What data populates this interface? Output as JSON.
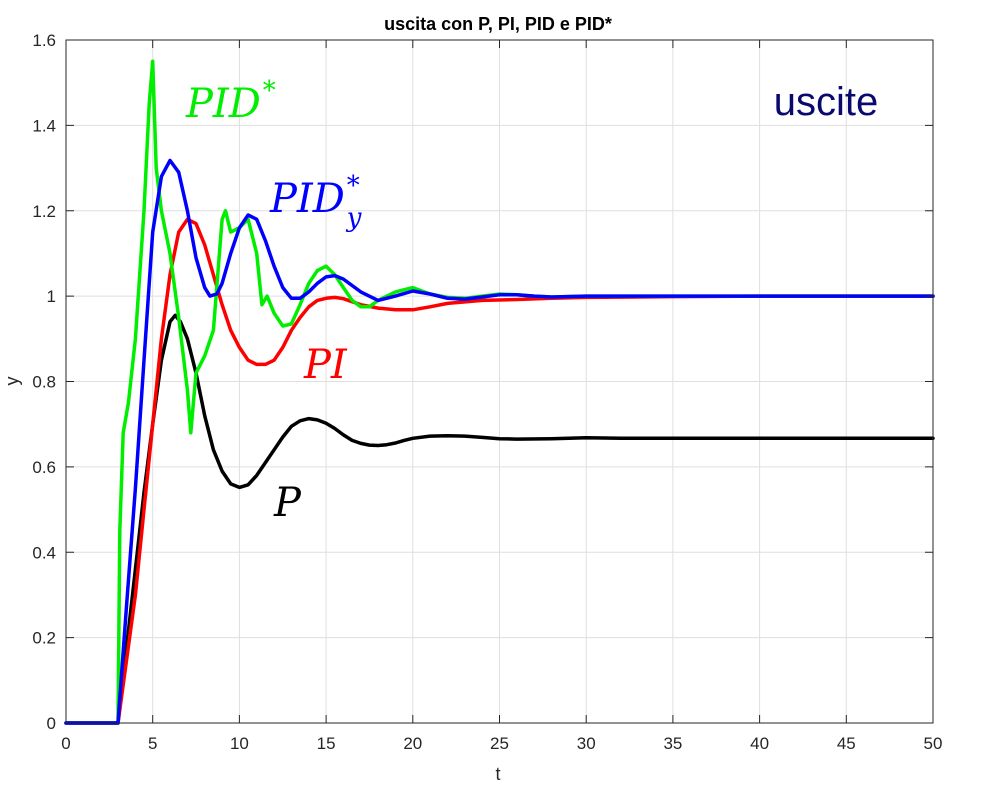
{
  "chart_data": {
    "type": "line",
    "title": "uscita con P, PI, PID e PID*",
    "xlabel": "t",
    "ylabel": "y",
    "xlim": [
      0,
      50
    ],
    "ylim": [
      0,
      1.6
    ],
    "x_ticks": [
      0,
      5,
      10,
      15,
      20,
      25,
      30,
      35,
      40,
      45,
      50
    ],
    "y_ticks": [
      0,
      0.2,
      0.4,
      0.6,
      0.8,
      1,
      1.2,
      1.4,
      1.6
    ],
    "x_tick_labels": [
      "0",
      "5",
      "10",
      "15",
      "20",
      "25",
      "30",
      "35",
      "40",
      "45",
      "50"
    ],
    "y_tick_labels": [
      "0",
      "0.2",
      "0.4",
      "0.6",
      "0.8",
      "1",
      "1.2",
      "1.4",
      "1.6"
    ],
    "grid": true,
    "corner_label": {
      "text": "uscite",
      "color": "#0a0a6e"
    },
    "series": [
      {
        "key": "P",
        "color": "#000000",
        "points": [
          [
            0,
            0
          ],
          [
            3,
            0
          ],
          [
            3.5,
            0.18
          ],
          [
            4,
            0.36
          ],
          [
            4.5,
            0.54
          ],
          [
            5,
            0.7
          ],
          [
            5.5,
            0.85
          ],
          [
            6,
            0.94
          ],
          [
            6.3,
            0.955
          ],
          [
            6.6,
            0.94
          ],
          [
            7,
            0.9
          ],
          [
            7.5,
            0.82
          ],
          [
            8,
            0.72
          ],
          [
            8.5,
            0.64
          ],
          [
            9,
            0.59
          ],
          [
            9.5,
            0.56
          ],
          [
            10,
            0.552
          ],
          [
            10.5,
            0.558
          ],
          [
            11,
            0.58
          ],
          [
            11.5,
            0.61
          ],
          [
            12,
            0.64
          ],
          [
            12.5,
            0.67
          ],
          [
            13,
            0.695
          ],
          [
            13.5,
            0.708
          ],
          [
            14,
            0.713
          ],
          [
            14.5,
            0.71
          ],
          [
            15,
            0.702
          ],
          [
            15.5,
            0.69
          ],
          [
            16,
            0.675
          ],
          [
            16.5,
            0.662
          ],
          [
            17,
            0.655
          ],
          [
            17.5,
            0.651
          ],
          [
            18,
            0.65
          ],
          [
            18.5,
            0.652
          ],
          [
            19,
            0.656
          ],
          [
            19.5,
            0.662
          ],
          [
            20,
            0.667
          ],
          [
            21,
            0.672
          ],
          [
            22,
            0.673
          ],
          [
            23,
            0.672
          ],
          [
            24,
            0.669
          ],
          [
            25,
            0.666
          ],
          [
            26,
            0.665
          ],
          [
            28,
            0.666
          ],
          [
            30,
            0.668
          ],
          [
            32,
            0.667
          ],
          [
            35,
            0.667
          ],
          [
            40,
            0.667
          ],
          [
            45,
            0.667
          ],
          [
            50,
            0.667
          ]
        ]
      },
      {
        "key": "PI",
        "color": "#ff0000",
        "points": [
          [
            0,
            0
          ],
          [
            3,
            0
          ],
          [
            3.5,
            0.15
          ],
          [
            4,
            0.3
          ],
          [
            4.5,
            0.5
          ],
          [
            5,
            0.7
          ],
          [
            5.5,
            0.9
          ],
          [
            6,
            1.05
          ],
          [
            6.5,
            1.15
          ],
          [
            7,
            1.18
          ],
          [
            7.5,
            1.17
          ],
          [
            8,
            1.12
          ],
          [
            8.5,
            1.05
          ],
          [
            9,
            0.98
          ],
          [
            9.5,
            0.92
          ],
          [
            10,
            0.88
          ],
          [
            10.5,
            0.85
          ],
          [
            11,
            0.84
          ],
          [
            11.5,
            0.84
          ],
          [
            12,
            0.85
          ],
          [
            12.5,
            0.88
          ],
          [
            13,
            0.92
          ],
          [
            13.5,
            0.95
          ],
          [
            14,
            0.975
          ],
          [
            14.5,
            0.99
          ],
          [
            15,
            0.995
          ],
          [
            15.5,
            0.997
          ],
          [
            16,
            0.994
          ],
          [
            17,
            0.98
          ],
          [
            18,
            0.972
          ],
          [
            19,
            0.968
          ],
          [
            20,
            0.968
          ],
          [
            21,
            0.975
          ],
          [
            22,
            0.983
          ],
          [
            24,
            0.99
          ],
          [
            26,
            0.992
          ],
          [
            28,
            0.995
          ],
          [
            30,
            0.997
          ],
          [
            35,
            0.999
          ],
          [
            40,
            1
          ],
          [
            45,
            1
          ],
          [
            50,
            1
          ]
        ]
      },
      {
        "key": "PID*",
        "color": "#00ee00",
        "points": [
          [
            0,
            0
          ],
          [
            3,
            0
          ],
          [
            3.1,
            0.45
          ],
          [
            3.3,
            0.68
          ],
          [
            3.6,
            0.75
          ],
          [
            4,
            0.9
          ],
          [
            4.5,
            1.2
          ],
          [
            4.8,
            1.45
          ],
          [
            5,
            1.55
          ],
          [
            5.2,
            1.3
          ],
          [
            5.5,
            1.2
          ],
          [
            6,
            1.1
          ],
          [
            6.5,
            0.95
          ],
          [
            7,
            0.78
          ],
          [
            7.2,
            0.68
          ],
          [
            7.5,
            0.82
          ],
          [
            8,
            0.86
          ],
          [
            8.5,
            0.92
          ],
          [
            9,
            1.18
          ],
          [
            9.2,
            1.2
          ],
          [
            9.5,
            1.15
          ],
          [
            10,
            1.16
          ],
          [
            10.5,
            1.18
          ],
          [
            11,
            1.1
          ],
          [
            11.3,
            0.98
          ],
          [
            11.6,
            1.0
          ],
          [
            12,
            0.96
          ],
          [
            12.5,
            0.93
          ],
          [
            13,
            0.935
          ],
          [
            13.5,
            0.98
          ],
          [
            14,
            1.03
          ],
          [
            14.5,
            1.06
          ],
          [
            15,
            1.07
          ],
          [
            15.5,
            1.05
          ],
          [
            16,
            1.02
          ],
          [
            16.5,
            0.99
          ],
          [
            17,
            0.975
          ],
          [
            17.5,
            0.975
          ],
          [
            18,
            0.99
          ],
          [
            19,
            1.01
          ],
          [
            20,
            1.02
          ],
          [
            21,
            1.005
          ],
          [
            22,
            0.997
          ],
          [
            23,
            0.995
          ],
          [
            24,
            1.0
          ],
          [
            25,
            1.005
          ],
          [
            26,
            1.003
          ],
          [
            27,
            1.0
          ],
          [
            28,
            0.998
          ],
          [
            30,
            1.0
          ],
          [
            35,
            1.0
          ],
          [
            40,
            1.0
          ],
          [
            45,
            1.0
          ],
          [
            50,
            1.0
          ]
        ]
      },
      {
        "key": "PIDy*",
        "color": "#0000ff",
        "points": [
          [
            0,
            0
          ],
          [
            3,
            0
          ],
          [
            3.5,
            0.28
          ],
          [
            4,
            0.55
          ],
          [
            4.5,
            0.85
          ],
          [
            5,
            1.15
          ],
          [
            5.5,
            1.28
          ],
          [
            6,
            1.318
          ],
          [
            6.5,
            1.29
          ],
          [
            7,
            1.2
          ],
          [
            7.5,
            1.09
          ],
          [
            8,
            1.02
          ],
          [
            8.3,
            1.0
          ],
          [
            8.7,
            1.005
          ],
          [
            9,
            1.03
          ],
          [
            9.5,
            1.1
          ],
          [
            10,
            1.16
          ],
          [
            10.5,
            1.19
          ],
          [
            11,
            1.18
          ],
          [
            11.5,
            1.13
          ],
          [
            12,
            1.07
          ],
          [
            12.5,
            1.02
          ],
          [
            13,
            0.995
          ],
          [
            13.5,
            0.995
          ],
          [
            14,
            1.01
          ],
          [
            14.5,
            1.03
          ],
          [
            15,
            1.045
          ],
          [
            15.5,
            1.048
          ],
          [
            16,
            1.04
          ],
          [
            17,
            1.01
          ],
          [
            18,
            0.99
          ],
          [
            19,
            1.0
          ],
          [
            20,
            1.012
          ],
          [
            21,
            1.005
          ],
          [
            22,
            0.995
          ],
          [
            23,
            0.993
          ],
          [
            24,
            0.998
          ],
          [
            25,
            1.003
          ],
          [
            26,
            1.003
          ],
          [
            27,
            1.0
          ],
          [
            28,
            0.998
          ],
          [
            30,
            1.0
          ],
          [
            35,
            1.0
          ],
          [
            40,
            1.0
          ],
          [
            45,
            1.0
          ],
          [
            50,
            1.0
          ]
        ]
      }
    ],
    "annotations": [
      {
        "series": "PID*",
        "color": "#00ee00",
        "base": "PID",
        "sup": "*",
        "sub": ""
      },
      {
        "series": "PIDy*",
        "color": "#0000ff",
        "base": "PID",
        "sup": "*",
        "sub": "y"
      },
      {
        "series": "PI",
        "color": "#ff0000",
        "base": "PI",
        "sup": "",
        "sub": ""
      },
      {
        "series": "P",
        "color": "#000000",
        "base": "P",
        "sup": "",
        "sub": ""
      }
    ]
  }
}
